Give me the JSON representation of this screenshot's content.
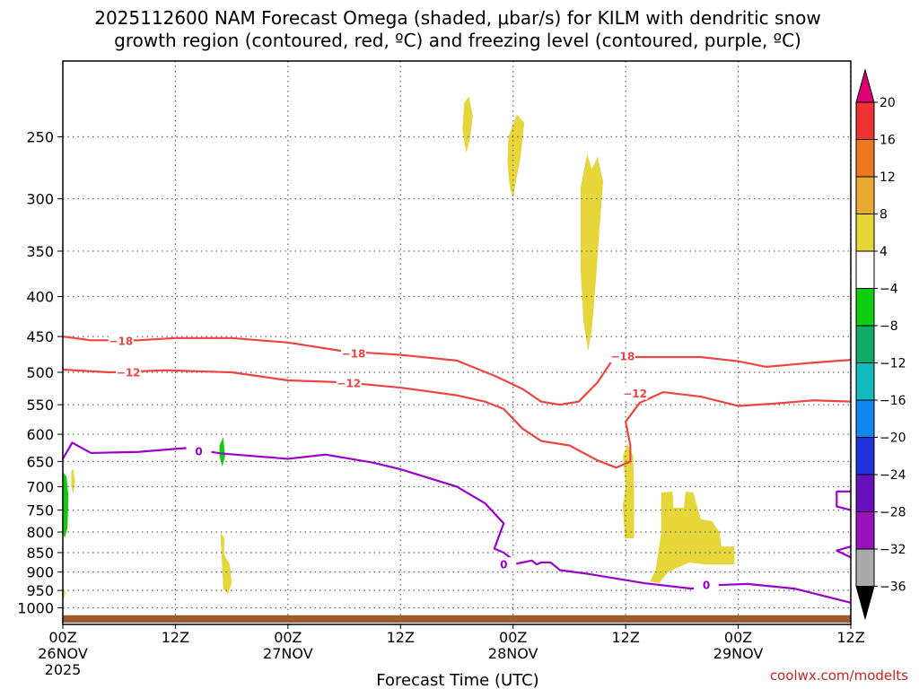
{
  "title_line1": "2025112600 NAM Forecast Omega (shaded, μbar/s) for KILM with dendritic snow",
  "title_line2": "growth region (contoured, red, ºC) and freezing level (contoured, purple, ºC)",
  "credit": "coolwx.com/modelts",
  "chart_data": {
    "type": "time-height",
    "xlabel": "Forecast Time (UTC)",
    "x_ticks": [
      {
        "label": "00Z",
        "sub": "26NOV",
        "sub2": "2025",
        "hour": 0
      },
      {
        "label": "12Z",
        "sub": "",
        "sub2": "",
        "hour": 12
      },
      {
        "label": "00Z",
        "sub": "27NOV",
        "sub2": "",
        "hour": 24
      },
      {
        "label": "12Z",
        "sub": "",
        "sub2": "",
        "hour": 36
      },
      {
        "label": "00Z",
        "sub": "28NOV",
        "sub2": "",
        "hour": 48
      },
      {
        "label": "12Z",
        "sub": "",
        "sub2": "",
        "hour": 60
      },
      {
        "label": "00Z",
        "sub": "29NOV",
        "sub2": "",
        "hour": 72
      },
      {
        "label": "12Z",
        "sub": "",
        "sub2": "",
        "hour": 84
      }
    ],
    "x_range_hours": [
      0,
      84
    ],
    "y_axis": "pressure (hPa), log scale",
    "y_ticks": [
      "250",
      "300",
      "350",
      "400",
      "450",
      "500",
      "550",
      "600",
      "650",
      "700",
      "750",
      "800",
      "850",
      "900",
      "950",
      "1000"
    ],
    "y_tick_values": [
      250,
      300,
      350,
      400,
      450,
      500,
      550,
      600,
      650,
      700,
      750,
      800,
      850,
      900,
      950,
      1000
    ],
    "y_range_hpa": [
      200,
      1050
    ],
    "grid": true,
    "colorbar": {
      "labels": [
        "20",
        "16",
        "12",
        "8",
        "4",
        "−4",
        "−8",
        "−12",
        "−16",
        "−20",
        "−24",
        "−28",
        "−32",
        "−36"
      ],
      "colors": [
        "#dd0077",
        "#ee3333",
        "#ee7722",
        "#e8aa33",
        "#e6d63a",
        "#ffffff",
        "#11cc11",
        "#11aa66",
        "#11bbbb",
        "#1188ee",
        "#2233dd",
        "#6611bb",
        "#9911bb",
        "#aaaaaa",
        "#000000"
      ]
    },
    "contours": [
      {
        "label": "−18",
        "color": "#ee4444",
        "points": [
          [
            0,
            450
          ],
          [
            3,
            455
          ],
          [
            8,
            455
          ],
          [
            12,
            452
          ],
          [
            18,
            452
          ],
          [
            24,
            458
          ],
          [
            30,
            470
          ],
          [
            36,
            475
          ],
          [
            42,
            483
          ],
          [
            46,
            505
          ],
          [
            49,
            525
          ],
          [
            51,
            545
          ],
          [
            53,
            550
          ],
          [
            55,
            545
          ],
          [
            57,
            515
          ],
          [
            58.5,
            484
          ],
          [
            60,
            478
          ],
          [
            64,
            478
          ],
          [
            68,
            478
          ],
          [
            72,
            484
          ],
          [
            75,
            492
          ],
          [
            80,
            486
          ],
          [
            84,
            482
          ]
        ]
      },
      {
        "label": "−12",
        "color": "#ee4444",
        "points": [
          [
            0,
            496
          ],
          [
            5,
            500
          ],
          [
            11,
            497
          ],
          [
            18,
            500
          ],
          [
            24,
            512
          ],
          [
            30,
            515
          ],
          [
            36,
            523
          ],
          [
            42,
            535
          ],
          [
            45,
            545
          ],
          [
            47,
            557
          ],
          [
            49,
            590
          ],
          [
            51,
            612
          ],
          [
            54,
            620
          ],
          [
            57,
            648
          ],
          [
            59,
            662
          ],
          [
            60.5,
            650
          ],
          [
            60.5,
            620
          ],
          [
            60,
            578
          ],
          [
            61.5,
            547
          ],
          [
            64,
            530
          ],
          [
            68,
            537
          ],
          [
            72,
            552
          ],
          [
            76,
            548
          ],
          [
            80,
            543
          ],
          [
            84,
            545
          ]
        ]
      }
    ],
    "freezing_level": {
      "label": "0",
      "color": "#9900cc",
      "points": [
        [
          0,
          645
        ],
        [
          1,
          615
        ],
        [
          3,
          634
        ],
        [
          8,
          632
        ],
        [
          13,
          625
        ],
        [
          17,
          635
        ],
        [
          24,
          645
        ],
        [
          28,
          637
        ],
        [
          33,
          652
        ],
        [
          36,
          665
        ],
        [
          42,
          700
        ],
        [
          45,
          735
        ],
        [
          47,
          780
        ],
        [
          46,
          840
        ],
        [
          47,
          850
        ],
        [
          48,
          868
        ],
        [
          47,
          885
        ],
        [
          50,
          870
        ],
        [
          50.5,
          880
        ],
        [
          51,
          875
        ],
        [
          52,
          875
        ],
        [
          53,
          895
        ],
        [
          56,
          905
        ],
        [
          62,
          930
        ],
        [
          67,
          945
        ],
        [
          70,
          935
        ],
        [
          73,
          932
        ],
        [
          78,
          945
        ],
        [
          84,
          985
        ]
      ]
    },
    "omega_shaded": [
      {
        "level": "4 to 8",
        "color": "#e6d63a",
        "regions": [
          "hour 43, 225-260 hPa",
          "hour 48, 238-298 hPa",
          "hour 56, 265-470 hPa",
          "hour 60, 615-815 hPa",
          "hour 65, 712-930 hPa",
          "hour 0.5, 665-700 hPa",
          "hour 17, 800-950 hPa"
        ]
      },
      {
        "level": "-8 to -4",
        "color": "#11cc11",
        "regions": [
          "hour 0, 665-810 hPa",
          "hour 17, 615-655 hPa"
        ]
      }
    ],
    "surface": {
      "color": "#9f5a30",
      "pressure_hpa": 1022
    }
  }
}
